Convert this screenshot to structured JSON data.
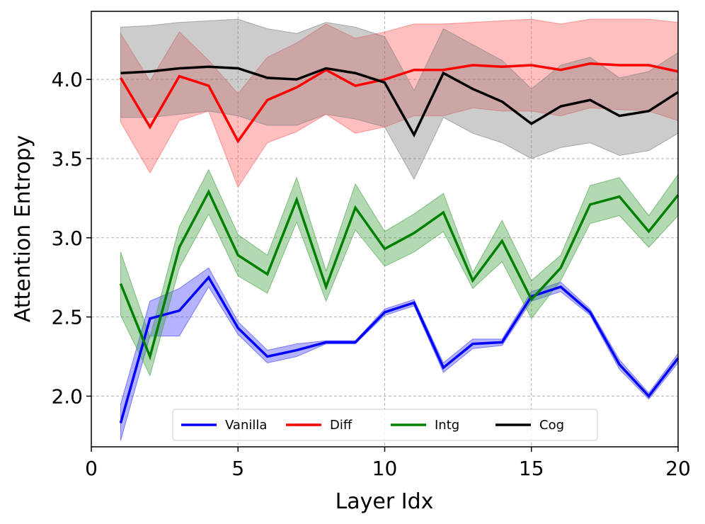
{
  "chart_data": {
    "type": "line",
    "title": "",
    "xlabel": "Layer Idx",
    "ylabel": "Attention Entropy",
    "xlim": [
      0,
      20
    ],
    "ylim": [
      1.68,
      4.43
    ],
    "xticks": [
      0,
      5,
      10,
      15,
      20
    ],
    "yticks": [
      2.0,
      2.5,
      3.0,
      3.5,
      4.0
    ],
    "xtick_labels": [
      "0",
      "5",
      "10",
      "15",
      "20"
    ],
    "ytick_labels": [
      "2.0",
      "2.5",
      "3.0",
      "3.5",
      "4.0"
    ],
    "grid": true,
    "legend_position": "bottom-center",
    "x": [
      1,
      2,
      3,
      4,
      5,
      6,
      7,
      8,
      9,
      10,
      11,
      12,
      13,
      14,
      15,
      16,
      17,
      18,
      19,
      20
    ],
    "series": [
      {
        "name": "Vanilla",
        "color": "#0000ff",
        "fill": "#4040ff",
        "values": [
          1.83,
          2.49,
          2.54,
          2.75,
          2.43,
          2.25,
          2.29,
          2.34,
          2.34,
          2.53,
          2.59,
          2.18,
          2.33,
          2.34,
          2.63,
          2.69,
          2.53,
          2.2,
          2.0,
          2.24
        ],
        "upper": [
          1.95,
          2.6,
          2.68,
          2.81,
          2.47,
          2.29,
          2.33,
          2.35,
          2.35,
          2.55,
          2.61,
          2.21,
          2.36,
          2.36,
          2.66,
          2.72,
          2.55,
          2.23,
          2.02,
          2.27
        ],
        "lower": [
          1.72,
          2.38,
          2.38,
          2.69,
          2.39,
          2.21,
          2.25,
          2.33,
          2.33,
          2.51,
          2.57,
          2.15,
          2.3,
          2.32,
          2.6,
          2.66,
          2.51,
          2.17,
          1.98,
          2.21
        ]
      },
      {
        "name": "Diff",
        "color": "#ff0000",
        "fill": "#ff6060",
        "values": [
          4.01,
          3.7,
          4.02,
          3.96,
          3.61,
          3.87,
          3.95,
          4.06,
          3.96,
          4.0,
          4.06,
          4.06,
          4.09,
          4.08,
          4.09,
          4.06,
          4.1,
          4.09,
          4.09,
          4.05
        ],
        "upper": [
          4.29,
          3.99,
          4.3,
          4.12,
          3.91,
          4.14,
          4.23,
          4.35,
          4.26,
          4.3,
          4.35,
          4.35,
          4.36,
          4.37,
          4.38,
          4.35,
          4.38,
          4.38,
          4.38,
          4.36
        ],
        "lower": [
          3.73,
          3.41,
          3.74,
          3.8,
          3.32,
          3.6,
          3.67,
          3.78,
          3.66,
          3.7,
          3.77,
          3.77,
          3.82,
          3.8,
          3.8,
          3.77,
          3.82,
          3.81,
          3.8,
          3.74
        ]
      },
      {
        "name": "Intg",
        "color": "#008000",
        "fill": "#40a040",
        "values": [
          2.71,
          2.25,
          2.94,
          3.29,
          2.89,
          2.77,
          3.24,
          2.69,
          3.19,
          2.93,
          3.03,
          3.16,
          2.73,
          2.98,
          2.61,
          2.81,
          3.21,
          3.26,
          3.04,
          3.27
        ],
        "upper": [
          2.91,
          2.37,
          3.07,
          3.43,
          3.02,
          2.89,
          3.38,
          2.79,
          3.34,
          3.04,
          3.15,
          3.28,
          2.78,
          3.11,
          2.73,
          2.89,
          3.33,
          3.38,
          3.14,
          3.4
        ],
        "lower": [
          2.51,
          2.13,
          2.81,
          3.15,
          2.76,
          2.65,
          3.1,
          2.6,
          3.05,
          2.82,
          2.91,
          3.04,
          2.68,
          2.85,
          2.49,
          2.73,
          3.09,
          3.14,
          2.94,
          3.14
        ]
      },
      {
        "name": "Cog",
        "color": "#000000",
        "fill": "#808080",
        "values": [
          4.04,
          4.05,
          4.07,
          4.08,
          4.07,
          4.01,
          4.0,
          4.07,
          4.04,
          3.98,
          3.65,
          4.04,
          3.94,
          3.86,
          3.72,
          3.83,
          3.87,
          3.77,
          3.8,
          3.92
        ],
        "upper": [
          4.33,
          4.34,
          4.36,
          4.37,
          4.38,
          4.32,
          4.29,
          4.36,
          4.33,
          4.27,
          3.93,
          4.32,
          4.22,
          4.12,
          3.94,
          4.09,
          4.14,
          4.01,
          4.05,
          4.17
        ],
        "lower": [
          3.76,
          3.76,
          3.78,
          3.8,
          3.77,
          3.71,
          3.71,
          3.78,
          3.75,
          3.7,
          3.37,
          3.76,
          3.66,
          3.6,
          3.5,
          3.57,
          3.6,
          3.52,
          3.55,
          3.66
        ]
      }
    ]
  }
}
